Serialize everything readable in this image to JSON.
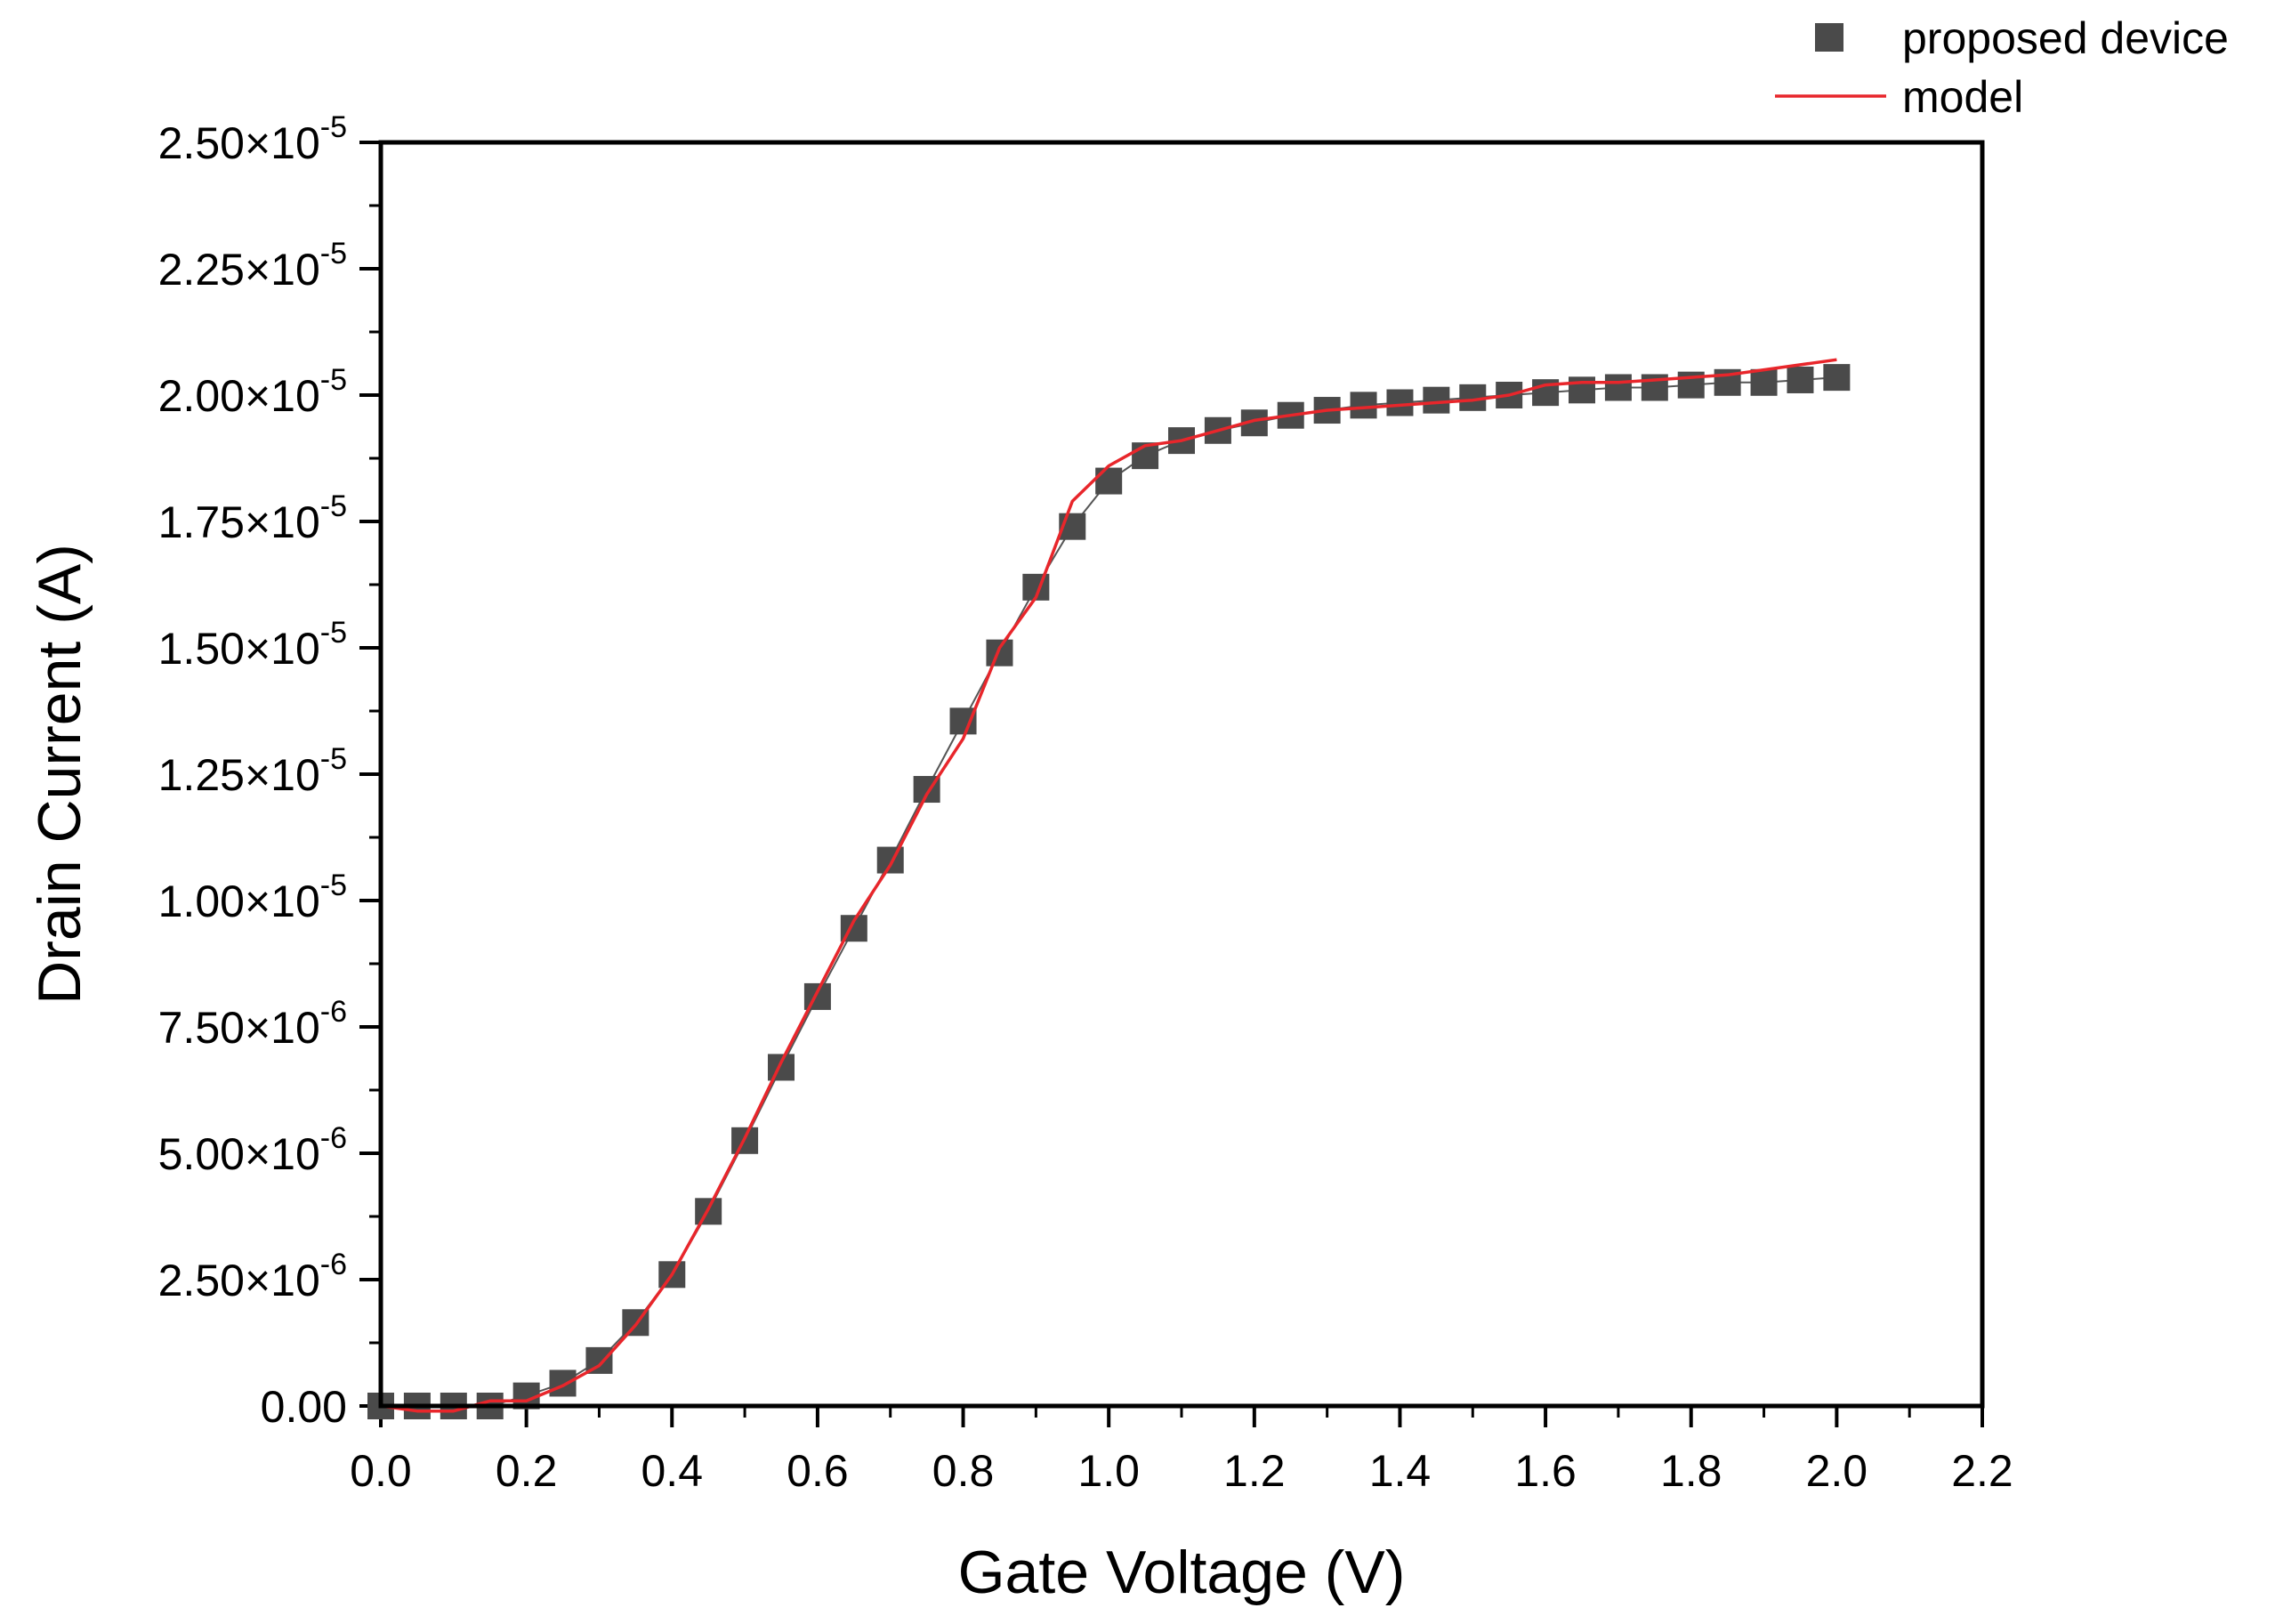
{
  "chart_data": {
    "type": "scatter",
    "title": "",
    "xlabel": "Gate Voltage (V)",
    "ylabel": "Drain Current (A)",
    "xlim": [
      0,
      2.2
    ],
    "ylim": [
      0,
      2.5e-05
    ],
    "x_ticks": [
      0.0,
      0.2,
      0.4,
      0.6,
      0.8,
      1.0,
      1.2,
      1.4,
      1.6,
      1.8,
      2.0,
      2.2
    ],
    "x_tick_labels": [
      "0.0",
      "0.2",
      "0.4",
      "0.6",
      "0.8",
      "1.0",
      "1.2",
      "1.4",
      "1.6",
      "1.8",
      "2.0",
      "2.2"
    ],
    "y_ticks": [
      0,
      2.5e-06,
      5e-06,
      7.5e-06,
      1e-05,
      1.25e-05,
      1.5e-05,
      1.75e-05,
      2e-05,
      2.25e-05,
      2.5e-05
    ],
    "y_tick_labels": [
      {
        "mantissa": "0.00",
        "exponent": ""
      },
      {
        "mantissa": "2.50×10",
        "exponent": "-6"
      },
      {
        "mantissa": "5.00×10",
        "exponent": "-6"
      },
      {
        "mantissa": "7.50×10",
        "exponent": "-6"
      },
      {
        "mantissa": "1.00×10",
        "exponent": "-5"
      },
      {
        "mantissa": "1.25×10",
        "exponent": "-5"
      },
      {
        "mantissa": "1.50×10",
        "exponent": "-5"
      },
      {
        "mantissa": "1.75×10",
        "exponent": "-5"
      },
      {
        "mantissa": "2.00×10",
        "exponent": "-5"
      },
      {
        "mantissa": "2.25×10",
        "exponent": "-5"
      },
      {
        "mantissa": "2.50×10",
        "exponent": "-5"
      }
    ],
    "grid": false,
    "legend_position": "top-right",
    "series": [
      {
        "name": "proposed device",
        "style": "markers",
        "marker": "square",
        "color": "#4a4a4a",
        "x": [
          0.0,
          0.05,
          0.1,
          0.15,
          0.2,
          0.25,
          0.3,
          0.35,
          0.4,
          0.45,
          0.5,
          0.55,
          0.6,
          0.65,
          0.7,
          0.75,
          0.8,
          0.85,
          0.9,
          0.95,
          1.0,
          1.05,
          1.1,
          1.15,
          1.2,
          1.25,
          1.3,
          1.35,
          1.4,
          1.45,
          1.5,
          1.55,
          1.6,
          1.65,
          1.7,
          1.75,
          1.8,
          1.85,
          1.9,
          1.95,
          2.0
        ],
        "y": [
          0,
          0,
          0,
          0,
          2e-07,
          4.5e-07,
          9e-07,
          1.65e-06,
          2.6e-06,
          3.85e-06,
          5.25e-06,
          6.7e-06,
          8.1e-06,
          9.45e-06,
          1.08e-05,
          1.22e-05,
          1.355e-05,
          1.49e-05,
          1.62e-05,
          1.74e-05,
          1.83e-05,
          1.88e-05,
          1.91e-05,
          1.93e-05,
          1.945e-05,
          1.96e-05,
          1.97e-05,
          1.98e-05,
          1.985e-05,
          1.99e-05,
          1.995e-05,
          2e-05,
          2.005e-05,
          2.01e-05,
          2.015e-05,
          2.015e-05,
          2.02e-05,
          2.025e-05,
          2.025e-05,
          2.03e-05,
          2.035e-05
        ]
      },
      {
        "name": "model",
        "style": "line",
        "color": "#e8262b",
        "x": [
          0.0,
          0.05,
          0.1,
          0.15,
          0.2,
          0.25,
          0.3,
          0.35,
          0.4,
          0.45,
          0.5,
          0.55,
          0.6,
          0.65,
          0.7,
          0.75,
          0.8,
          0.85,
          0.9,
          0.95,
          1.0,
          1.05,
          1.1,
          1.15,
          1.2,
          1.25,
          1.3,
          1.35,
          1.4,
          1.45,
          1.5,
          1.55,
          1.6,
          1.65,
          1.7,
          1.75,
          1.8,
          1.85,
          1.9,
          1.95,
          2.0
        ],
        "y": [
          0,
          -1e-07,
          -1e-07,
          1e-07,
          1e-07,
          4e-07,
          8e-07,
          1.6e-06,
          2.6e-06,
          3.9e-06,
          5.3e-06,
          6.8e-06,
          8.2e-06,
          9.6e-06,
          1.07e-05,
          1.21e-05,
          1.32e-05,
          1.5e-05,
          1.6e-05,
          1.79e-05,
          1.86e-05,
          1.9e-05,
          1.91e-05,
          1.93e-05,
          1.95e-05,
          1.96e-05,
          1.97e-05,
          1.975e-05,
          1.98e-05,
          1.985e-05,
          1.99e-05,
          2e-05,
          2.02e-05,
          2.025e-05,
          2.025e-05,
          2.03e-05,
          2.035e-05,
          2.04e-05,
          2.05e-05,
          2.06e-05,
          2.07e-05
        ]
      }
    ]
  }
}
